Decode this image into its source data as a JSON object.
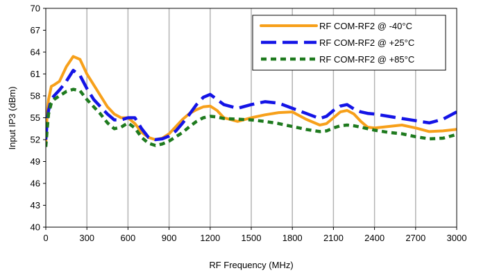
{
  "chart_data": {
    "type": "line",
    "title": "",
    "xlabel": "RF Frequency (MHz)",
    "ylabel": "Input IP3 (dBm)",
    "xlim": [
      0,
      3000
    ],
    "ylim": [
      40,
      70
    ],
    "xticks": [
      0,
      300,
      600,
      900,
      1200,
      1500,
      1800,
      2100,
      2400,
      2700,
      3000
    ],
    "yticks": [
      40,
      43,
      46,
      49,
      52,
      55,
      58,
      61,
      64,
      67,
      70
    ],
    "grid": "vertical",
    "legend_position": "top-right",
    "series": [
      {
        "name": "RF COM-RF2 @ -40°C",
        "color": "#F7A01A",
        "style": "solid",
        "x": [
          0,
          10,
          20,
          40,
          60,
          100,
          150,
          200,
          250,
          300,
          350,
          400,
          450,
          500,
          550,
          600,
          650,
          700,
          750,
          800,
          850,
          900,
          950,
          1000,
          1050,
          1100,
          1150,
          1200,
          1250,
          1300,
          1400,
          1500,
          1600,
          1700,
          1800,
          1900,
          2000,
          2050,
          2100,
          2150,
          2200,
          2250,
          2300,
          2350,
          2400,
          2500,
          2600,
          2700,
          2800,
          2900,
          3000
        ],
        "y": [
          51.5,
          55.5,
          57.5,
          59.3,
          59.5,
          60,
          62,
          63.4,
          63,
          61,
          59.5,
          58,
          56.5,
          55.5,
          55,
          55,
          54.2,
          53,
          52.3,
          52,
          52.2,
          52.8,
          53.8,
          54.8,
          55.6,
          56.1,
          56.5,
          56.6,
          56,
          55,
          54.5,
          55,
          55.4,
          55.7,
          55.8,
          54.8,
          54,
          54.2,
          55,
          55.8,
          56,
          55.5,
          54.5,
          53.7,
          53.6,
          53.8,
          54,
          53.6,
          53.1,
          53.2,
          53.4
        ]
      },
      {
        "name": "RF COM-RF2 @ +25°C",
        "color": "#1414E6",
        "style": "dashed",
        "x": [
          0,
          10,
          20,
          40,
          60,
          100,
          150,
          200,
          250,
          300,
          350,
          400,
          450,
          500,
          550,
          600,
          650,
          700,
          750,
          800,
          850,
          900,
          950,
          1000,
          1050,
          1100,
          1150,
          1200,
          1250,
          1300,
          1400,
          1500,
          1600,
          1700,
          1800,
          1900,
          2000,
          2050,
          2100,
          2150,
          2200,
          2250,
          2300,
          2350,
          2400,
          2500,
          2600,
          2700,
          2800,
          2900,
          3000
        ],
        "y": [
          52,
          54.5,
          56,
          57.5,
          58,
          58.8,
          60,
          61.5,
          60.8,
          59,
          57.5,
          56.5,
          55.5,
          54.7,
          54.7,
          55,
          55,
          53.5,
          52.3,
          52,
          52.1,
          52.5,
          53.2,
          54.3,
          55.5,
          56.8,
          57.8,
          58.2,
          57.5,
          56.8,
          56.3,
          56.8,
          57.2,
          57,
          56.3,
          55.6,
          54.9,
          55.2,
          56,
          56.6,
          56.8,
          56.2,
          55.8,
          55.6,
          55.5,
          55.2,
          54.9,
          54.6,
          54.3,
          54.8,
          55.8
        ]
      },
      {
        "name": "RF COM-RF2 @ +85°C",
        "color": "#1E7A1E",
        "style": "dotted",
        "x": [
          0,
          10,
          20,
          40,
          60,
          100,
          150,
          200,
          250,
          300,
          350,
          400,
          450,
          500,
          550,
          600,
          650,
          700,
          750,
          800,
          850,
          900,
          950,
          1000,
          1050,
          1100,
          1150,
          1200,
          1250,
          1300,
          1400,
          1500,
          1600,
          1700,
          1800,
          1900,
          2000,
          2050,
          2100,
          2150,
          2200,
          2250,
          2300,
          2350,
          2400,
          2500,
          2600,
          2700,
          2800,
          2900,
          3000
        ],
        "y": [
          51,
          53.5,
          55.5,
          57,
          57.5,
          58,
          58.6,
          58.9,
          58.7,
          57.5,
          56.5,
          55.5,
          54.3,
          53.5,
          53.7,
          54.3,
          53.6,
          52.3,
          51.5,
          51.2,
          51.4,
          51.8,
          52.4,
          53,
          53.8,
          54.5,
          55,
          55.2,
          55.1,
          54.9,
          54.8,
          54.7,
          54.5,
          54.2,
          53.8,
          53.4,
          53.1,
          53.2,
          53.6,
          53.9,
          54,
          53.9,
          53.7,
          53.5,
          53.3,
          53,
          52.8,
          52.4,
          52.1,
          52.2,
          52.7
        ]
      }
    ]
  }
}
